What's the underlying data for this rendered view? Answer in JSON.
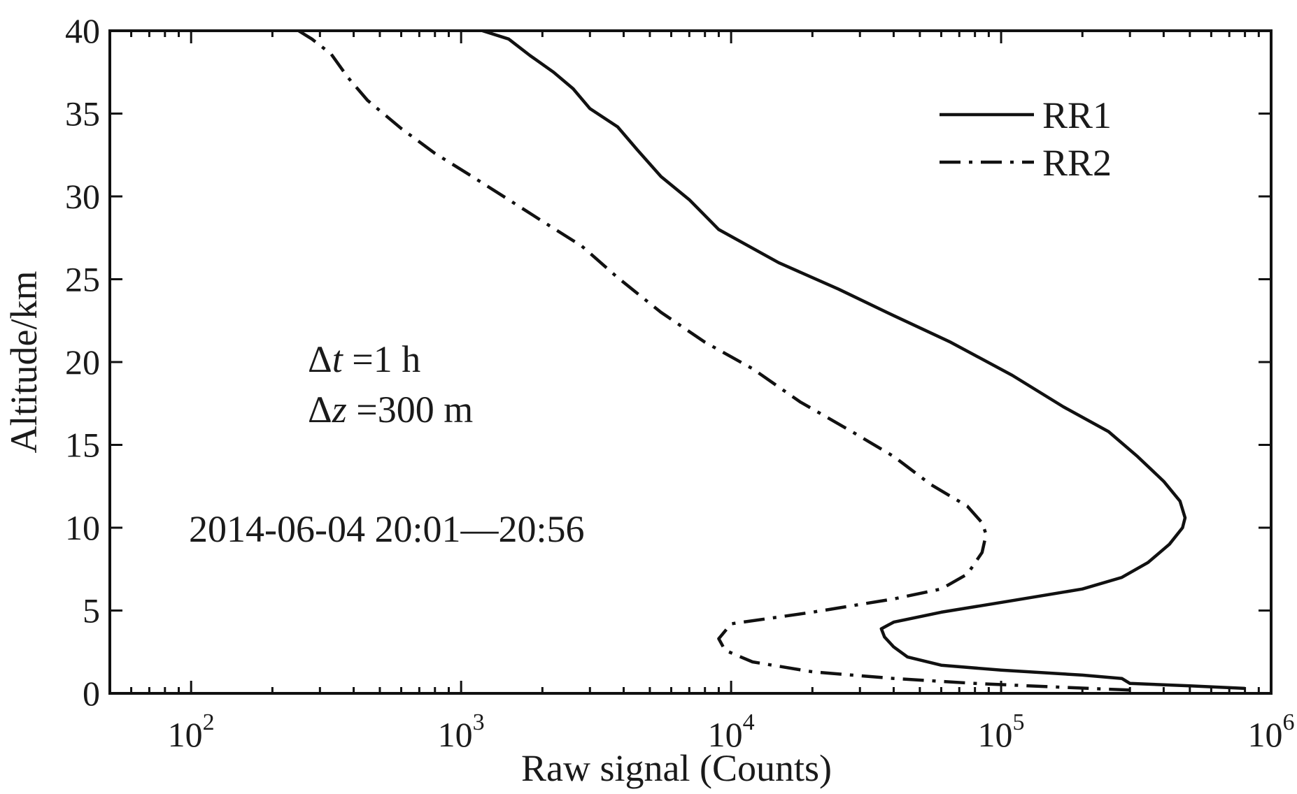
{
  "chart_data": {
    "type": "line",
    "title": "",
    "xlabel": "Raw signal (Counts)",
    "ylabel": "Altitude/km",
    "xscale": "log",
    "xlim": [
      50,
      1000000
    ],
    "ylim": [
      0,
      40
    ],
    "grid": false,
    "x_ticks": [
      {
        "value": 100,
        "base": "10",
        "exp": "2"
      },
      {
        "value": 1000,
        "base": "10",
        "exp": "3"
      },
      {
        "value": 10000,
        "base": "10",
        "exp": "4"
      },
      {
        "value": 100000,
        "base": "10",
        "exp": "5"
      },
      {
        "value": 1000000,
        "base": "10",
        "exp": "6"
      }
    ],
    "y_ticks": [
      "0",
      "5",
      "10",
      "15",
      "20",
      "25",
      "30",
      "35",
      "40"
    ],
    "legend_position": "top-right",
    "series": [
      {
        "name": "RR1",
        "style": "solid",
        "color": "#111111",
        "points": [
          [
            800000,
            0.3
          ],
          [
            500000,
            0.45
          ],
          [
            300000,
            0.6
          ],
          [
            280000,
            0.9
          ],
          [
            200000,
            1.1
          ],
          [
            100000,
            1.4
          ],
          [
            60000,
            1.7
          ],
          [
            45000,
            2.2
          ],
          [
            40000,
            2.8
          ],
          [
            37000,
            3.4
          ],
          [
            36000,
            3.9
          ],
          [
            40000,
            4.3
          ],
          [
            60000,
            4.9
          ],
          [
            110000,
            5.6
          ],
          [
            200000,
            6.3
          ],
          [
            280000,
            7.0
          ],
          [
            350000,
            7.9
          ],
          [
            420000,
            9.0
          ],
          [
            470000,
            10.0
          ],
          [
            480000,
            10.6
          ],
          [
            460000,
            11.6
          ],
          [
            400000,
            12.8
          ],
          [
            320000,
            14.3
          ],
          [
            250000,
            15.8
          ],
          [
            170000,
            17.3
          ],
          [
            110000,
            19.2
          ],
          [
            65000,
            21.2
          ],
          [
            40000,
            22.8
          ],
          [
            25000,
            24.4
          ],
          [
            15000,
            26.0
          ],
          [
            9000,
            28.0
          ],
          [
            7000,
            29.8
          ],
          [
            5500,
            31.2
          ],
          [
            4500,
            32.8
          ],
          [
            3800,
            34.2
          ],
          [
            3000,
            35.3
          ],
          [
            2600,
            36.5
          ],
          [
            2200,
            37.5
          ],
          [
            1800,
            38.5
          ],
          [
            1500,
            39.5
          ],
          [
            1200,
            40.0
          ]
        ]
      },
      {
        "name": "RR2",
        "style": "dash-dot",
        "color": "#111111",
        "points": [
          [
            300000,
            0.2
          ],
          [
            150000,
            0.4
          ],
          [
            80000,
            0.6
          ],
          [
            40000,
            0.9
          ],
          [
            20000,
            1.3
          ],
          [
            12000,
            1.9
          ],
          [
            9500,
            2.6
          ],
          [
            9000,
            3.3
          ],
          [
            10000,
            4.2
          ],
          [
            20000,
            4.9
          ],
          [
            40000,
            5.7
          ],
          [
            60000,
            6.3
          ],
          [
            75000,
            7.2
          ],
          [
            85000,
            8.5
          ],
          [
            88000,
            9.6
          ],
          [
            85000,
            10.3
          ],
          [
            75000,
            11.3
          ],
          [
            55000,
            12.6
          ],
          [
            40000,
            14.3
          ],
          [
            28000,
            15.8
          ],
          [
            18000,
            17.6
          ],
          [
            12000,
            19.6
          ],
          [
            8000,
            21.2
          ],
          [
            5500,
            23.0
          ],
          [
            3800,
            25.1
          ],
          [
            2800,
            27.0
          ],
          [
            2000,
            28.5
          ],
          [
            1500,
            29.8
          ],
          [
            1100,
            31.2
          ],
          [
            800,
            32.6
          ],
          [
            600,
            34.1
          ],
          [
            450,
            35.8
          ],
          [
            380,
            37.2
          ],
          [
            330,
            38.6
          ],
          [
            280,
            39.5
          ],
          [
            250,
            40.0
          ]
        ]
      }
    ],
    "annotations": [
      {
        "symbol": "Δ",
        "var": "t",
        "text": " =1 h"
      },
      {
        "symbol": "Δ",
        "var": "z",
        "text": " =300 m"
      },
      {
        "text": "2014-06-04 20:01—20:56"
      }
    ]
  }
}
